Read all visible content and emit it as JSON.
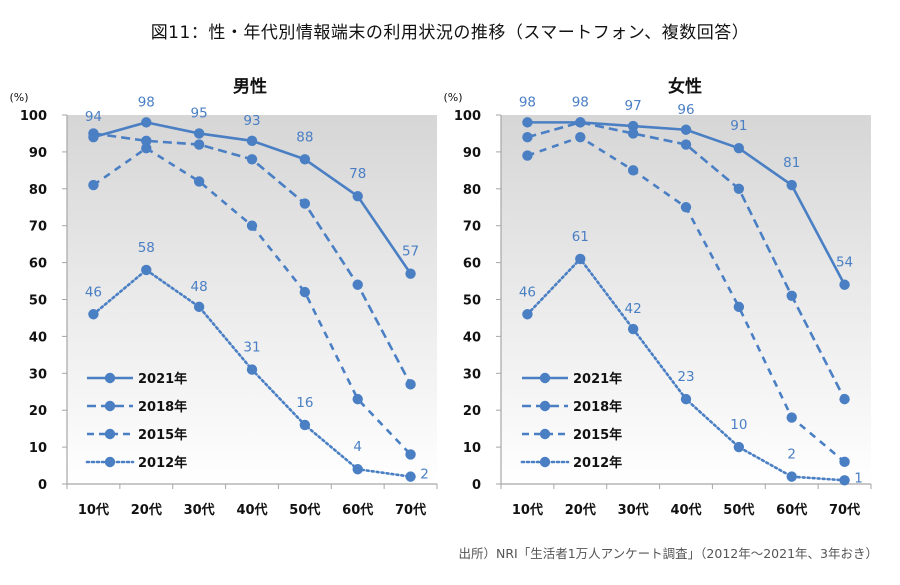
{
  "figure_title": "図11：性・年代別情報端末の利用状況の推移（スマートフォン、複数回答）",
  "source_note": "出所）NRI「生活者1万人アンケート調査」（2012年〜2021年、3年おき）",
  "colors": {
    "series": "#4a7fc4",
    "plot_bg_top": "#d6d6d6",
    "plot_bg_bottom": "#ffffff",
    "axis": "#a6a6a6"
  },
  "chart_data": [
    {
      "type": "line",
      "title": "男性",
      "ylabel": "(%)",
      "xlabel": "",
      "ylim": [
        0,
        100
      ],
      "yticks": [
        0,
        10,
        20,
        30,
        40,
        50,
        60,
        70,
        80,
        90,
        100
      ],
      "categories": [
        "10代",
        "20代",
        "30代",
        "40代",
        "50代",
        "60代",
        "70代"
      ],
      "legend": "bottom-left",
      "grid": false,
      "series": [
        {
          "name": "2021年",
          "style": "solid",
          "values": [
            94,
            98,
            95,
            93,
            88,
            78,
            57
          ],
          "labels_shown": true
        },
        {
          "name": "2018年",
          "style": "dash",
          "values": [
            95,
            93,
            92,
            88,
            76,
            54,
            27
          ],
          "labels_shown": false
        },
        {
          "name": "2015年",
          "style": "dash-short",
          "values": [
            81,
            91,
            82,
            70,
            52,
            23,
            8
          ],
          "labels_shown": false
        },
        {
          "name": "2012年",
          "style": "dot",
          "values": [
            46,
            58,
            48,
            31,
            16,
            4,
            2
          ],
          "labels_shown": true
        }
      ]
    },
    {
      "type": "line",
      "title": "女性",
      "ylabel": "(%)",
      "xlabel": "",
      "ylim": [
        0,
        100
      ],
      "yticks": [
        0,
        10,
        20,
        30,
        40,
        50,
        60,
        70,
        80,
        90,
        100
      ],
      "categories": [
        "10代",
        "20代",
        "30代",
        "40代",
        "50代",
        "60代",
        "70代"
      ],
      "legend": "bottom-left",
      "grid": false,
      "series": [
        {
          "name": "2021年",
          "style": "solid",
          "values": [
            98,
            98,
            97,
            96,
            91,
            81,
            54
          ],
          "labels_shown": true
        },
        {
          "name": "2018年",
          "style": "dash",
          "values": [
            94,
            98,
            95,
            92,
            80,
            51,
            23
          ],
          "labels_shown": false
        },
        {
          "name": "2015年",
          "style": "dash-short",
          "values": [
            89,
            94,
            85,
            75,
            48,
            18,
            6
          ],
          "labels_shown": false
        },
        {
          "name": "2012年",
          "style": "dot",
          "values": [
            46,
            61,
            42,
            23,
            10,
            2,
            1
          ],
          "labels_shown": true
        }
      ]
    }
  ]
}
